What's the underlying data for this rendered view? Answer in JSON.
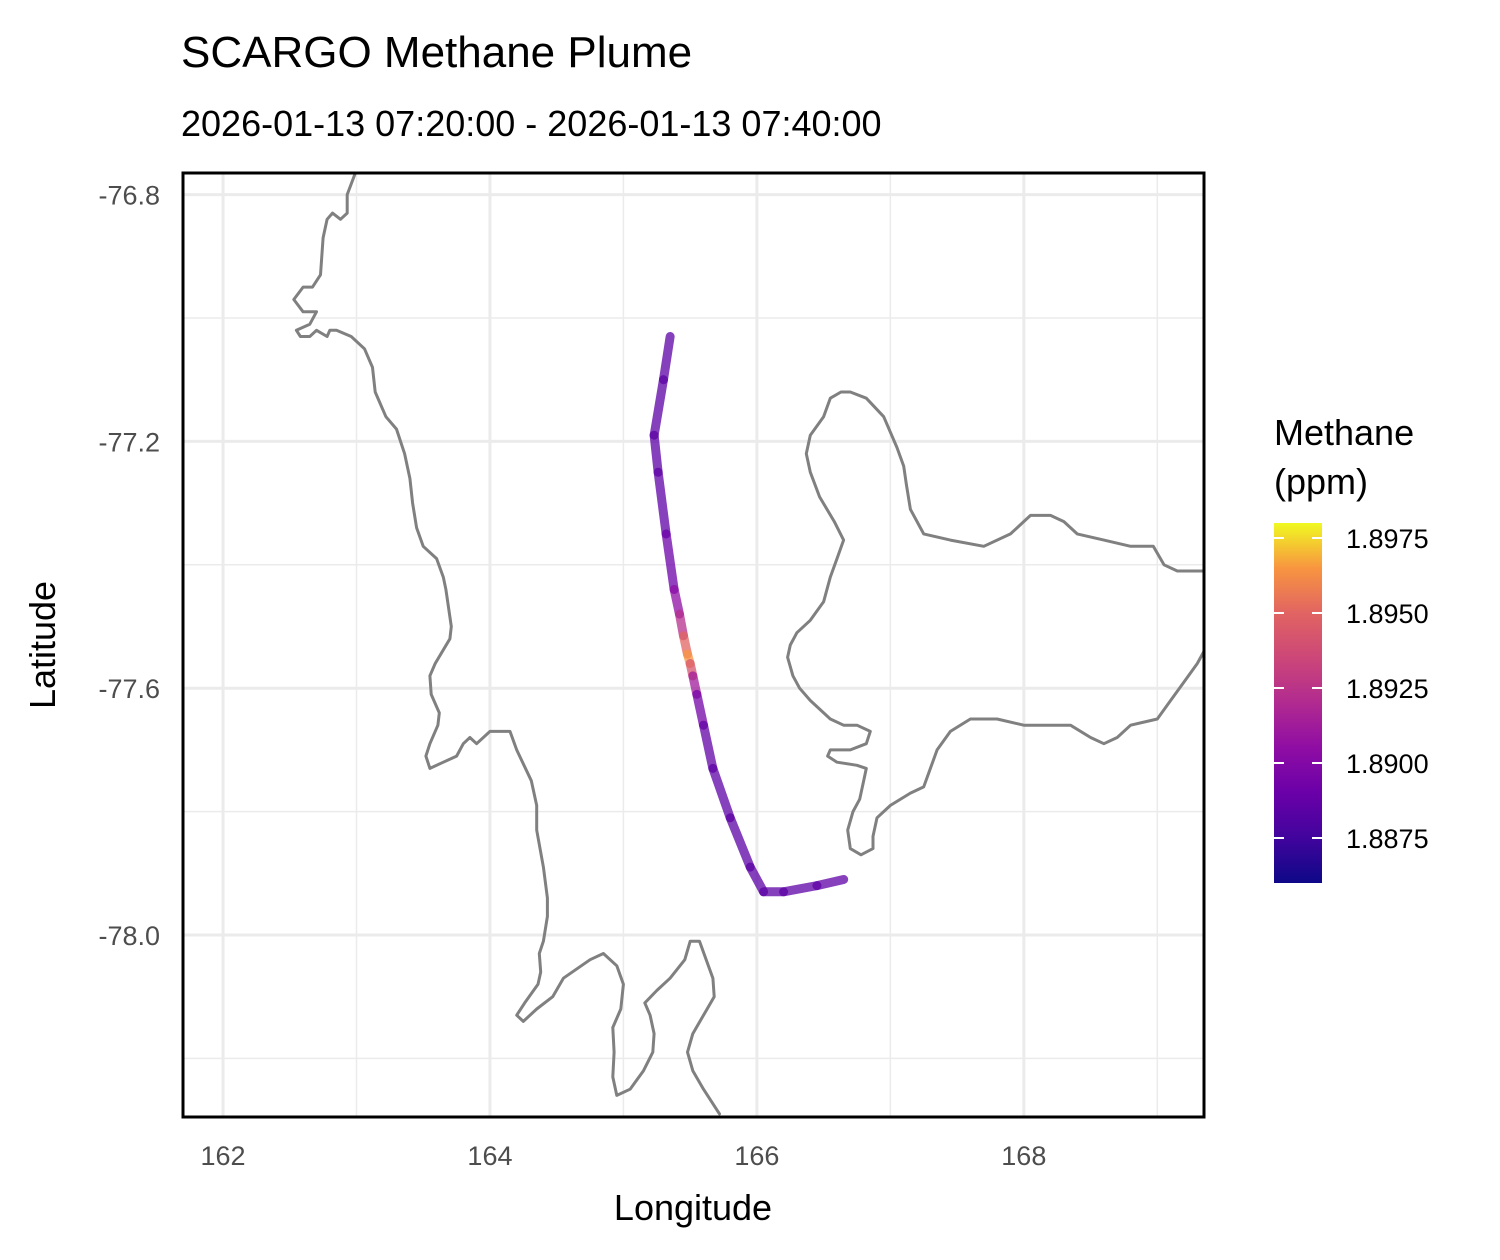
{
  "chart_data": {
    "type": "line",
    "title": "SCARGO Methane Plume",
    "subtitle": "2026-01-13 07:20:00 - 2026-01-13 07:40:00",
    "xlabel": "Longitude",
    "ylabel": "Latitude",
    "xlim": [
      161.7,
      169.35
    ],
    "ylim": [
      -78.295,
      -76.765
    ],
    "x_major_ticks": [
      162,
      164,
      166,
      168
    ],
    "x_minor_ticks": [
      163,
      165,
      167,
      169
    ],
    "y_major_ticks": [
      -76.8,
      -77.2,
      -77.6,
      -78.0
    ],
    "y_minor_ticks": [
      -77.0,
      -77.4,
      -77.8,
      -78.2
    ],
    "x_tick_labels": [
      "162",
      "164",
      "166",
      "168"
    ],
    "y_tick_labels": [
      "-76.8",
      "-77.2",
      "-77.6",
      "-78.0"
    ],
    "grid": true,
    "legend": {
      "title_lines": [
        "Methane",
        "(ppm)"
      ],
      "placement": "right",
      "colorscale": "plasma",
      "range": [
        1.886,
        1.898
      ],
      "ticks": [
        1.8975,
        1.895,
        1.8925,
        1.89,
        1.8875
      ],
      "tick_labels": [
        "1.8975",
        "1.8950",
        "1.8925",
        "1.8900",
        "1.8875"
      ]
    },
    "series": [
      {
        "points": [
          {
            "lon": 165.35,
            "lat": -77.03,
            "ch4": 1.8885
          },
          {
            "lon": 165.3,
            "lat": -77.1,
            "ch4": 1.8885
          },
          {
            "lon": 165.23,
            "lat": -77.19,
            "ch4": 1.8885
          },
          {
            "lon": 165.26,
            "lat": -77.25,
            "ch4": 1.8885
          },
          {
            "lon": 165.32,
            "lat": -77.35,
            "ch4": 1.8887
          },
          {
            "lon": 165.38,
            "lat": -77.44,
            "ch4": 1.8895
          },
          {
            "lon": 165.42,
            "lat": -77.48,
            "ch4": 1.8915
          },
          {
            "lon": 165.45,
            "lat": -77.515,
            "ch4": 1.893
          },
          {
            "lon": 165.48,
            "lat": -77.545,
            "ch4": 1.897
          },
          {
            "lon": 165.5,
            "lat": -77.56,
            "ch4": 1.896
          },
          {
            "lon": 165.52,
            "lat": -77.58,
            "ch4": 1.8925
          },
          {
            "lon": 165.55,
            "lat": -77.61,
            "ch4": 1.89
          },
          {
            "lon": 165.6,
            "lat": -77.66,
            "ch4": 1.8888
          },
          {
            "lon": 165.67,
            "lat": -77.73,
            "ch4": 1.8886
          },
          {
            "lon": 165.8,
            "lat": -77.81,
            "ch4": 1.8885
          },
          {
            "lon": 165.95,
            "lat": -77.89,
            "ch4": 1.8885
          },
          {
            "lon": 166.05,
            "lat": -77.93,
            "ch4": 1.8885
          },
          {
            "lon": 166.2,
            "lat": -77.93,
            "ch4": 1.8885
          },
          {
            "lon": 166.45,
            "lat": -77.92,
            "ch4": 1.8886
          },
          {
            "lon": 166.65,
            "lat": -77.91,
            "ch4": 1.8886
          }
        ]
      }
    ],
    "coastlines": [
      [
        [
          163.0,
          -76.76
        ],
        [
          162.93,
          -76.8
        ],
        [
          162.93,
          -76.83
        ],
        [
          162.88,
          -76.84
        ],
        [
          162.82,
          -76.83
        ],
        [
          162.78,
          -76.84
        ],
        [
          162.75,
          -76.87
        ],
        [
          162.74,
          -76.9
        ],
        [
          162.73,
          -76.93
        ],
        [
          162.67,
          -76.95
        ],
        [
          162.6,
          -76.95
        ],
        [
          162.53,
          -76.97
        ],
        [
          162.6,
          -76.99
        ],
        [
          162.7,
          -76.99
        ],
        [
          162.65,
          -77.01
        ],
        [
          162.55,
          -77.02
        ],
        [
          162.58,
          -77.03
        ],
        [
          162.65,
          -77.03
        ],
        [
          162.7,
          -77.02
        ],
        [
          162.78,
          -77.03
        ],
        [
          162.8,
          -77.02
        ],
        [
          162.85,
          -77.02
        ],
        [
          162.96,
          -77.03
        ],
        [
          163.06,
          -77.05
        ],
        [
          163.12,
          -77.08
        ],
        [
          163.14,
          -77.12
        ],
        [
          163.22,
          -77.16
        ],
        [
          163.3,
          -77.18
        ],
        [
          163.36,
          -77.22
        ],
        [
          163.4,
          -77.26
        ],
        [
          163.42,
          -77.3
        ],
        [
          163.45,
          -77.34
        ],
        [
          163.5,
          -77.37
        ],
        [
          163.6,
          -77.39
        ],
        [
          163.65,
          -77.42
        ],
        [
          163.67,
          -77.44
        ],
        [
          163.71,
          -77.5
        ],
        [
          163.7,
          -77.52
        ],
        [
          163.59,
          -77.56
        ],
        [
          163.55,
          -77.58
        ],
        [
          163.56,
          -77.61
        ],
        [
          163.62,
          -77.64
        ],
        [
          163.61,
          -77.66
        ],
        [
          163.55,
          -77.69
        ],
        [
          163.52,
          -77.71
        ],
        [
          163.55,
          -77.73
        ],
        [
          163.65,
          -77.72
        ],
        [
          163.75,
          -77.71
        ],
        [
          163.8,
          -77.69
        ],
        [
          163.85,
          -77.68
        ],
        [
          163.9,
          -77.69
        ],
        [
          164.0,
          -77.67
        ],
        [
          164.15,
          -77.67
        ],
        [
          164.2,
          -77.7
        ],
        [
          164.31,
          -77.75
        ],
        [
          164.35,
          -77.79
        ],
        [
          164.35,
          -77.83
        ],
        [
          164.4,
          -77.89
        ],
        [
          164.43,
          -77.94
        ],
        [
          164.43,
          -77.97
        ],
        [
          164.4,
          -78.01
        ],
        [
          164.37,
          -78.03
        ],
        [
          164.38,
          -78.06
        ],
        [
          164.36,
          -78.08
        ],
        [
          164.26,
          -78.11
        ],
        [
          164.2,
          -78.13
        ],
        [
          164.25,
          -78.14
        ],
        [
          164.35,
          -78.12
        ],
        [
          164.47,
          -78.1
        ],
        [
          164.55,
          -78.07
        ],
        [
          164.75,
          -78.04
        ],
        [
          164.85,
          -78.03
        ],
        [
          164.95,
          -78.05
        ],
        [
          165.0,
          -78.08
        ],
        [
          164.98,
          -78.12
        ],
        [
          164.92,
          -78.15
        ],
        [
          164.93,
          -78.19
        ],
        [
          164.92,
          -78.23
        ],
        [
          164.95,
          -78.26
        ],
        [
          165.05,
          -78.25
        ],
        [
          165.15,
          -78.22
        ],
        [
          165.22,
          -78.19
        ],
        [
          165.23,
          -78.16
        ],
        [
          165.2,
          -78.13
        ],
        [
          165.16,
          -78.11
        ],
        [
          165.25,
          -78.09
        ],
        [
          165.35,
          -78.07
        ],
        [
          165.46,
          -78.04
        ],
        [
          165.5,
          -78.01
        ],
        [
          165.57,
          -78.01
        ],
        [
          165.62,
          -78.04
        ],
        [
          165.67,
          -78.07
        ],
        [
          165.68,
          -78.1
        ],
        [
          165.6,
          -78.13
        ],
        [
          165.52,
          -78.16
        ],
        [
          165.48,
          -78.19
        ],
        [
          165.52,
          -78.22
        ],
        [
          165.6,
          -78.25
        ],
        [
          165.72,
          -78.29
        ]
      ],
      [
        [
          169.35,
          -77.54
        ],
        [
          169.3,
          -77.56
        ],
        [
          169.2,
          -77.59
        ],
        [
          169.1,
          -77.62
        ],
        [
          169.0,
          -77.65
        ],
        [
          168.8,
          -77.66
        ],
        [
          168.7,
          -77.68
        ],
        [
          168.6,
          -77.69
        ],
        [
          168.5,
          -77.68
        ],
        [
          168.35,
          -77.66
        ],
        [
          168.2,
          -77.66
        ],
        [
          168.0,
          -77.66
        ],
        [
          167.8,
          -77.65
        ],
        [
          167.6,
          -77.65
        ],
        [
          167.45,
          -77.67
        ],
        [
          167.35,
          -77.7
        ],
        [
          167.3,
          -77.73
        ],
        [
          167.25,
          -77.76
        ],
        [
          167.15,
          -77.77
        ],
        [
          167.0,
          -77.79
        ],
        [
          166.9,
          -77.81
        ],
        [
          166.87,
          -77.84
        ],
        [
          166.87,
          -77.86
        ],
        [
          166.78,
          -77.87
        ],
        [
          166.7,
          -77.86
        ],
        [
          166.68,
          -77.83
        ],
        [
          166.72,
          -77.8
        ],
        [
          166.77,
          -77.78
        ],
        [
          166.8,
          -77.75
        ],
        [
          166.82,
          -77.73
        ],
        [
          166.75,
          -77.725
        ],
        [
          166.6,
          -77.72
        ],
        [
          166.53,
          -77.71
        ],
        [
          166.55,
          -77.7
        ],
        [
          166.7,
          -77.7
        ],
        [
          166.82,
          -77.69
        ],
        [
          166.85,
          -77.67
        ],
        [
          166.75,
          -77.66
        ],
        [
          166.65,
          -77.66
        ],
        [
          166.55,
          -77.65
        ],
        [
          166.4,
          -77.62
        ],
        [
          166.32,
          -77.6
        ],
        [
          166.27,
          -77.58
        ],
        [
          166.23,
          -77.55
        ],
        [
          166.25,
          -77.53
        ],
        [
          166.3,
          -77.51
        ],
        [
          166.4,
          -77.49
        ],
        [
          166.5,
          -77.46
        ],
        [
          166.55,
          -77.42
        ],
        [
          166.6,
          -77.39
        ],
        [
          166.65,
          -77.36
        ],
        [
          166.58,
          -77.33
        ],
        [
          166.47,
          -77.29
        ],
        [
          166.4,
          -77.25
        ],
        [
          166.37,
          -77.22
        ],
        [
          166.4,
          -77.19
        ],
        [
          166.5,
          -77.16
        ],
        [
          166.55,
          -77.13
        ],
        [
          166.63,
          -77.12
        ],
        [
          166.7,
          -77.12
        ],
        [
          166.82,
          -77.13
        ],
        [
          166.95,
          -77.16
        ],
        [
          167.05,
          -77.21
        ],
        [
          167.1,
          -77.24
        ],
        [
          167.12,
          -77.27
        ],
        [
          167.15,
          -77.31
        ],
        [
          167.25,
          -77.35
        ],
        [
          167.45,
          -77.36
        ],
        [
          167.7,
          -77.37
        ],
        [
          167.9,
          -77.35
        ],
        [
          168.05,
          -77.32
        ],
        [
          168.2,
          -77.32
        ],
        [
          168.3,
          -77.33
        ],
        [
          168.4,
          -77.35
        ],
        [
          168.6,
          -77.36
        ],
        [
          168.8,
          -77.37
        ],
        [
          168.97,
          -77.37
        ],
        [
          169.05,
          -77.4
        ],
        [
          169.15,
          -77.41
        ],
        [
          169.35,
          -77.41
        ]
      ]
    ]
  }
}
